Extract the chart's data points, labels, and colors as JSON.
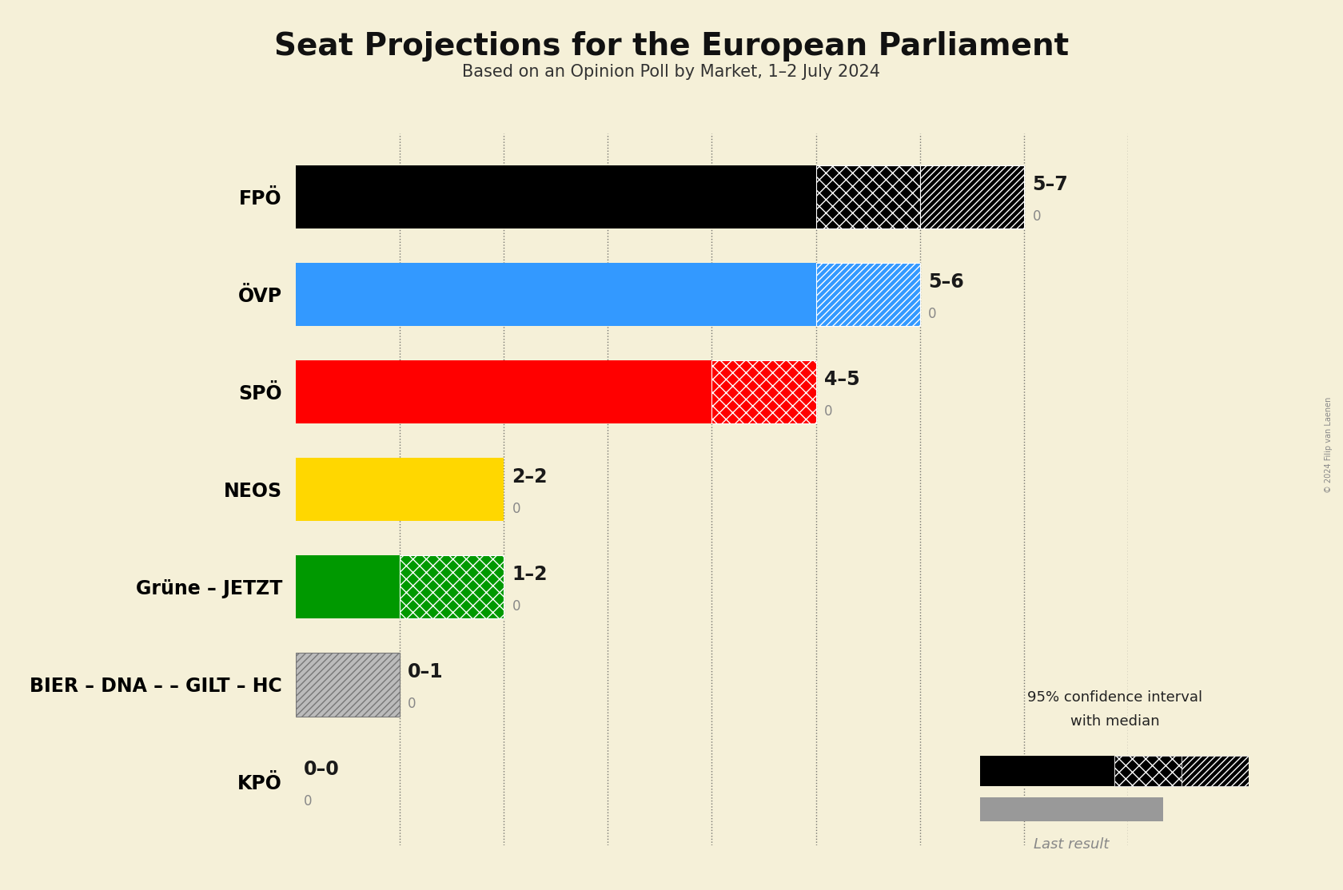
{
  "title": "Seat Projections for the European Parliament",
  "subtitle": "Based on an Opinion Poll by Market, 1–2 July 2024",
  "copyright": "© 2024 Filip van Laenen",
  "background_color": "#f5f0d8",
  "parties": [
    "FPÖ",
    "ÖVP",
    "SPÖ",
    "NEOS",
    "Grüne – JETZT",
    "BIER – DNA – – GILT – HC",
    "KPÖ"
  ],
  "median_seats": [
    5,
    5,
    4,
    2,
    1,
    0,
    0
  ],
  "ci_low": [
    5,
    5,
    4,
    2,
    1,
    0,
    0
  ],
  "ci_high": [
    7,
    6,
    5,
    2,
    2,
    1,
    0
  ],
  "last_result": [
    0,
    0,
    0,
    0,
    0,
    0,
    0
  ],
  "colors": [
    "#000000",
    "#3399FF",
    "#FF0000",
    "#FFD700",
    "#009900",
    "#999999",
    "#888888"
  ],
  "labels": [
    "5–7",
    "5–6",
    "4–5",
    "2–2",
    "1–2",
    "0–1",
    "0–0"
  ],
  "xlim_max": 8.0,
  "bar_height": 0.65,
  "label_fontsize": 17,
  "sublabel_fontsize": 12,
  "title_fontsize": 28,
  "subtitle_fontsize": 15
}
